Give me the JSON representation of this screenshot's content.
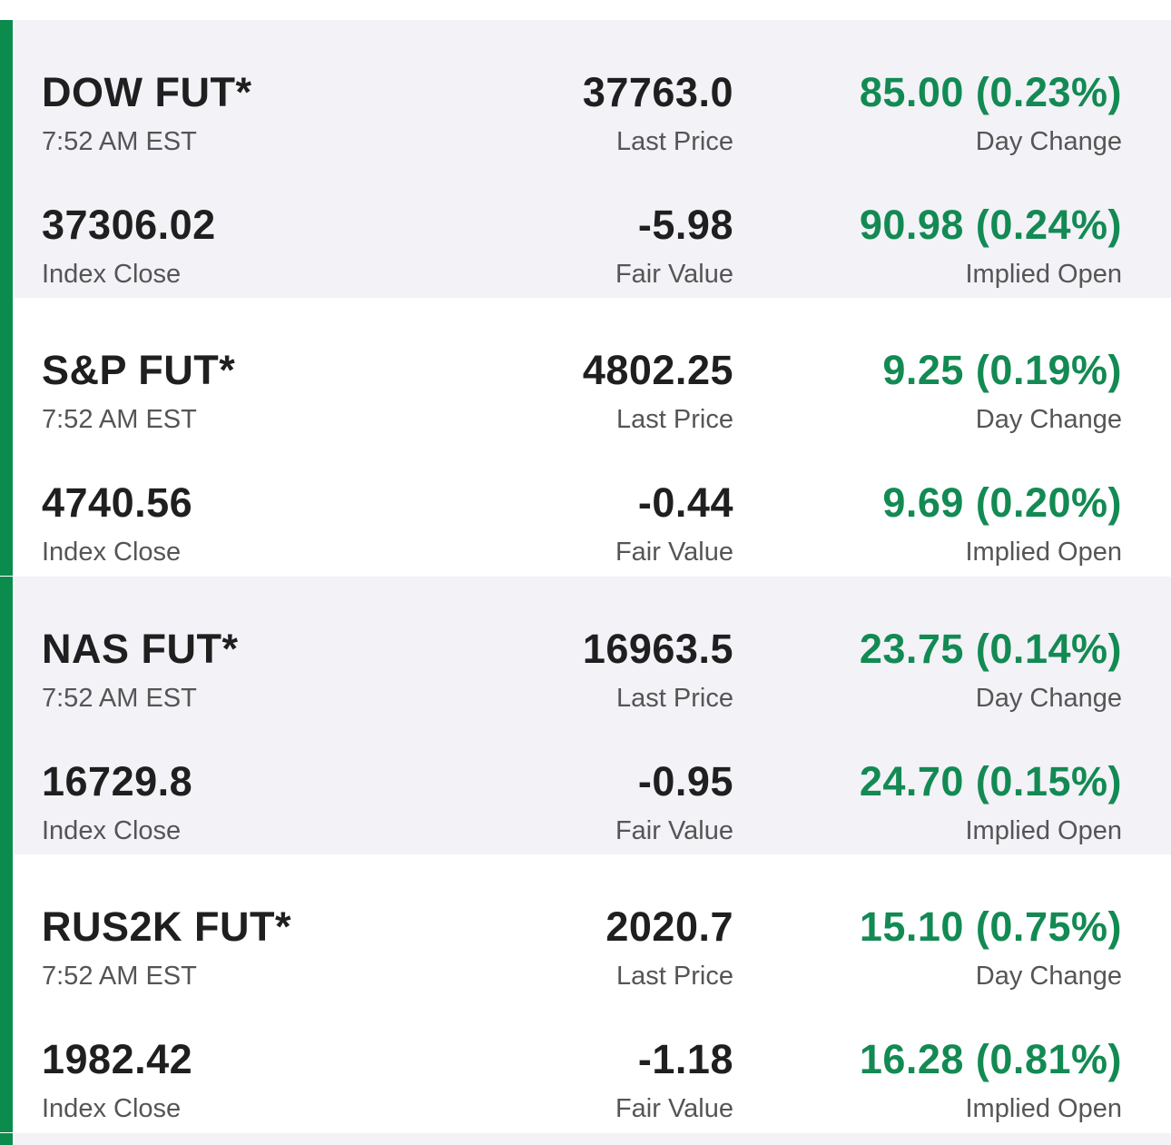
{
  "colors": {
    "accent_bar": "#0b8c4d",
    "positive": "#138a53",
    "card_bg_shaded": "#f2f2f7",
    "card_bg_plain": "#ffffff"
  },
  "cards": [
    {
      "name": "DOW FUT*",
      "time": "7:52 AM EST",
      "last_price": "37763.0",
      "last_price_label": "Last Price",
      "day_change": "85.00 (0.23%)",
      "day_change_label": "Day Change",
      "index_close": "37306.02",
      "index_close_label": "Index Close",
      "fair_value": "-5.98",
      "fair_value_label": "Fair Value",
      "implied_open": "90.98 (0.24%)",
      "implied_open_label": "Implied Open"
    },
    {
      "name": "S&P FUT*",
      "time": "7:52 AM EST",
      "last_price": "4802.25",
      "last_price_label": "Last Price",
      "day_change": "9.25 (0.19%)",
      "day_change_label": "Day Change",
      "index_close": "4740.56",
      "index_close_label": "Index Close",
      "fair_value": "-0.44",
      "fair_value_label": "Fair Value",
      "implied_open": "9.69 (0.20%)",
      "implied_open_label": "Implied Open"
    },
    {
      "name": "NAS FUT*",
      "time": "7:52 AM EST",
      "last_price": "16963.5",
      "last_price_label": "Last Price",
      "day_change": "23.75 (0.14%)",
      "day_change_label": "Day Change",
      "index_close": "16729.8",
      "index_close_label": "Index Close",
      "fair_value": "-0.95",
      "fair_value_label": "Fair Value",
      "implied_open": "24.70 (0.15%)",
      "implied_open_label": "Implied Open"
    },
    {
      "name": "RUS2K FUT*",
      "time": "7:52 AM EST",
      "last_price": "2020.7",
      "last_price_label": "Last Price",
      "day_change": "15.10 (0.75%)",
      "day_change_label": "Day Change",
      "index_close": "1982.42",
      "index_close_label": "Index Close",
      "fair_value": "-1.18",
      "fair_value_label": "Fair Value",
      "implied_open": "16.28 (0.81%)",
      "implied_open_label": "Implied Open"
    }
  ]
}
